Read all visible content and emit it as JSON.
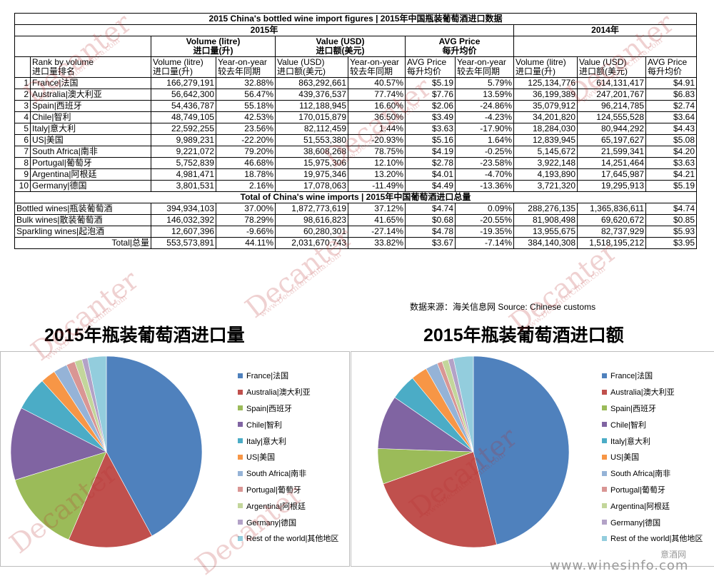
{
  "table": {
    "title": "2015 China's bottled wine import figures | 2015年中国瓶装葡萄酒进口数据",
    "year_2015": "2015年",
    "year_2014": "2014年",
    "group_volume": "Volume (litre)",
    "group_volume_cn": "进口量(升)",
    "group_value": "Value (USD)",
    "group_value_cn": "进口额(美元)",
    "group_avg": "AVG Price",
    "group_avg_cn": "每升均价",
    "col_rank": "Rank by volume",
    "col_rank_cn": "进口量排名",
    "col_volume": "Volume (litre)",
    "col_volume_cn": "进口量(升)",
    "col_yoy": "Year-on-year",
    "col_yoy_cn": "较去年同期",
    "col_value": "Value (USD)",
    "col_value_cn": "进口额(美元)",
    "col_avg": "AVG Price",
    "col_avg_cn": "每升均价",
    "rows": [
      {
        "rank": "1",
        "name": "France|法国",
        "vol": "166,279,191",
        "vol_yoy": "32.88%",
        "val": "863,292,661",
        "val_yoy": "40.57%",
        "avg": "$5.19",
        "avg_yoy": "5.79%",
        "vol14": "125,134,776",
        "val14": "614,131,417",
        "avg14": "$4.91"
      },
      {
        "rank": "2",
        "name": "Australia|澳大利亚",
        "vol": "56,642,300",
        "vol_yoy": "56.47%",
        "val": "439,376,537",
        "val_yoy": "77.74%",
        "avg": "$7.76",
        "avg_yoy": "13.59%",
        "vol14": "36,199,389",
        "val14": "247,201,767",
        "avg14": "$6.83"
      },
      {
        "rank": "3",
        "name": "Spain|西班牙",
        "vol": "54,436,787",
        "vol_yoy": "55.18%",
        "val": "112,188,945",
        "val_yoy": "16.60%",
        "avg": "$2.06",
        "avg_yoy": "-24.86%",
        "vol14": "35,079,912",
        "val14": "96,214,785",
        "avg14": "$2.74"
      },
      {
        "rank": "4",
        "name": "Chile|智利",
        "vol": "48,749,105",
        "vol_yoy": "42.53%",
        "val": "170,015,879",
        "val_yoy": "36.50%",
        "avg": "$3.49",
        "avg_yoy": "-4.23%",
        "vol14": "34,201,820",
        "val14": "124,555,528",
        "avg14": "$3.64"
      },
      {
        "rank": "5",
        "name": "Italy|意大利",
        "vol": "22,592,255",
        "vol_yoy": "23.56%",
        "val": "82,112,459",
        "val_yoy": "1.44%",
        "avg": "$3.63",
        "avg_yoy": "-17.90%",
        "vol14": "18,284,030",
        "val14": "80,944,292",
        "avg14": "$4.43"
      },
      {
        "rank": "6",
        "name": "US|美国",
        "vol": "9,989,231",
        "vol_yoy": "-22.20%",
        "val": "51,553,380",
        "val_yoy": "-20.93%",
        "avg": "$5.16",
        "avg_yoy": "1.64%",
        "vol14": "12,839,945",
        "val14": "65,197,627",
        "avg14": "$5.08"
      },
      {
        "rank": "7",
        "name": "South Africa|南非",
        "vol": "9,221,072",
        "vol_yoy": "79.20%",
        "val": "38,608,268",
        "val_yoy": "78.75%",
        "avg": "$4.19",
        "avg_yoy": "-0.25%",
        "vol14": "5,145,672",
        "val14": "21,599,341",
        "avg14": "$4.20"
      },
      {
        "rank": "8",
        "name": "Portugal|葡萄牙",
        "vol": "5,752,839",
        "vol_yoy": "46.68%",
        "val": "15,975,306",
        "val_yoy": "12.10%",
        "avg": "$2.78",
        "avg_yoy": "-23.58%",
        "vol14": "3,922,148",
        "val14": "14,251,464",
        "avg14": "$3.63"
      },
      {
        "rank": "9",
        "name": "Argentina|阿根廷",
        "vol": "4,981,471",
        "vol_yoy": "18.78%",
        "val": "19,975,346",
        "val_yoy": "13.20%",
        "avg": "$4.01",
        "avg_yoy": "-4.70%",
        "vol14": "4,193,890",
        "val14": "17,645,987",
        "avg14": "$4.21"
      },
      {
        "rank": "10",
        "name": "Germany|德国",
        "vol": "3,801,531",
        "vol_yoy": "2.16%",
        "val": "17,078,063",
        "val_yoy": "-11.49%",
        "avg": "$4.49",
        "avg_yoy": "-13.36%",
        "vol14": "3,721,320",
        "val14": "19,295,913",
        "avg14": "$5.19"
      }
    ],
    "total_title": "Total of China's wine imports | 2015年中国葡萄酒进口总量",
    "totals": [
      {
        "name": "Bottled wines|瓶装葡萄酒",
        "vol": "394,934,103",
        "vol_yoy": "37.00%",
        "val": "1,872,773,619",
        "val_yoy": "37.12%",
        "avg": "$4.74",
        "avg_yoy": "0.09%",
        "vol14": "288,276,135",
        "val14": "1,365,836,611",
        "avg14": "$4.74"
      },
      {
        "name": "Bulk wines|散装葡萄酒",
        "vol": "146,032,392",
        "vol_yoy": "78.29%",
        "val": "98,616,823",
        "val_yoy": "41.65%",
        "avg": "$0.68",
        "avg_yoy": "-20.55%",
        "vol14": "81,908,498",
        "val14": "69,620,672",
        "avg14": "$0.85"
      },
      {
        "name": "Sparkling wines|起泡酒",
        "vol": "12,607,396",
        "vol_yoy": "-9.66%",
        "val": "60,280,301",
        "val_yoy": "-27.14%",
        "avg": "$4.78",
        "avg_yoy": "-19.35%",
        "vol14": "13,955,675",
        "val14": "82,737,929",
        "avg14": "$5.93"
      },
      {
        "name": "Total|总量",
        "vol": "553,573,891",
        "vol_yoy": "44.11%",
        "val": "2,031,670,743",
        "val_yoy": "33.82%",
        "avg": "$3.67",
        "avg_yoy": "-7.14%",
        "vol14": "384,140,308",
        "val14": "1,518,195,212",
        "avg14": "$3.95"
      }
    ],
    "source": "数据来源：海关信息网 Source: Chinese customs"
  },
  "chart_data": [
    {
      "type": "pie",
      "title": "2015年瓶装葡萄酒进口量",
      "categories": [
        "France|法国",
        "Australia|澳大利亚",
        "Spain|西班牙",
        "Chile|智利",
        "Italy|意大利",
        "US|美国",
        "South Africa|南非",
        "Portugal|葡萄牙",
        "Argentina|阿根廷",
        "Germany|德国",
        "Rest of the world|其他地区"
      ],
      "values": [
        166279191,
        56642300,
        54436787,
        48749105,
        22592255,
        9989231,
        9221072,
        5752839,
        4981471,
        3801531,
        12488301
      ],
      "colors": [
        "#4f81bd",
        "#c0504d",
        "#9bbb59",
        "#8064a2",
        "#4bacc6",
        "#f79646",
        "#95b3d7",
        "#d99694",
        "#c3d69b",
        "#b3a2c7",
        "#93cddd"
      ],
      "legend": "right"
    },
    {
      "type": "pie",
      "title": "2015年瓶装葡萄酒进口额",
      "categories": [
        "France|法国",
        "Australia|澳大利亚",
        "Spain|西班牙",
        "Chile|智利",
        "Italy|意大利",
        "US|美国",
        "South Africa|南非",
        "Portugal|葡萄牙",
        "Argentina|阿根廷",
        "Germany|德国",
        "Rest of the world|其他地区"
      ],
      "values": [
        863292661,
        439376537,
        112188945,
        170015879,
        82112459,
        51553380,
        38608268,
        15975306,
        19975346,
        17078063,
        62596775
      ],
      "colors": [
        "#4f81bd",
        "#c0504d",
        "#9bbb59",
        "#8064a2",
        "#4bacc6",
        "#f79646",
        "#95b3d7",
        "#d99694",
        "#c3d69b",
        "#b3a2c7",
        "#93cddd"
      ],
      "legend": "right"
    }
  ],
  "watermark": {
    "brand": "Decanter",
    "site": "www.DecanterChina.com",
    "footer_site": "www.winesinfo.com",
    "footer_cn": "意酒网"
  }
}
